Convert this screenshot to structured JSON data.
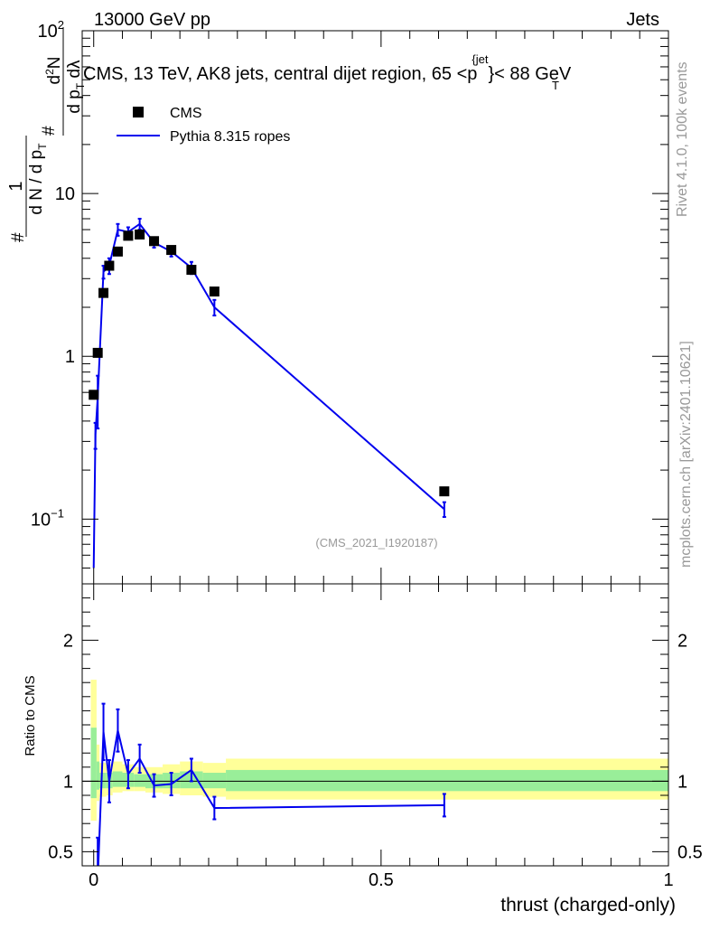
{
  "header": {
    "left": "13000 GeV pp",
    "right": "Jets"
  },
  "side_text": {
    "rivet": "Rivet 4.1.0,  100k events",
    "mcplots": "mcplots.cern.ch [arXiv:2401.10621]"
  },
  "colors": {
    "mc": "#0000ee",
    "data": "#000000",
    "band_inner": "#99ee99",
    "band_outer": "#ffff99",
    "watermark": "#999999"
  },
  "chart_data": [
    {
      "type": "scatter",
      "panel": "main",
      "title": "CMS, 13 TeV, AK8 jets, central dijet region, 65 <p_T^{jet}< 88 GeV",
      "title_main": "CMS, 13 TeV, AK8 jets, central dijet region, 65 <",
      "title_p": "p",
      "title_sub": "T",
      "title_sup": "{jet",
      "title_close": "}",
      "title_end": "< 88 GeV",
      "ylabel": "1/(dN/dp_T) d²N/(dp_T dλ)",
      "ylabel_parts": {
        "frac1_num": "1",
        "frac1_den_a": "d N / d p",
        "frac1_den_sub": "T",
        "frac2_num_a": "d",
        "frac2_num_sup": "2",
        "frac2_num_b": "N",
        "frac2_den_a": "d p",
        "frac2_den_sub": "T",
        "frac2_den_b": " d",
        "lambda": "λ",
        "hash": "#"
      },
      "yscale": "log",
      "ylim": [
        0.04,
        100
      ],
      "xlim": [
        -0.02,
        1.0
      ],
      "y_tick_labels": [
        {
          "value": 0.1,
          "base": "10",
          "exp": "−1"
        },
        {
          "value": 1,
          "base": "1",
          "exp": ""
        },
        {
          "value": 10,
          "base": "10",
          "exp": ""
        },
        {
          "value": 100,
          "base": "10",
          "exp": "2"
        }
      ],
      "legend": [
        {
          "name": "CMS",
          "marker": "square"
        },
        {
          "name": "Pythia 8.315 ropes",
          "marker": "line"
        }
      ],
      "watermark": "(CMS_2021_I1920187)",
      "series": [
        {
          "name": "CMS",
          "x": [
            0.0,
            0.007,
            0.017,
            0.027,
            0.042,
            0.06,
            0.08,
            0.105,
            0.135,
            0.17,
            0.21,
            0.61
          ],
          "y": [
            0.58,
            1.05,
            2.45,
            3.6,
            4.4,
            5.5,
            5.6,
            5.1,
            4.5,
            3.4,
            2.5,
            0.148
          ]
        },
        {
          "name": "Pythia 8.315 ropes",
          "x": [
            0.0,
            0.003,
            0.007,
            0.017,
            0.027,
            0.042,
            0.06,
            0.08,
            0.105,
            0.135,
            0.17,
            0.21,
            0.61
          ],
          "y": [
            0.05,
            0.33,
            0.56,
            3.3,
            3.6,
            6.0,
            5.8,
            6.5,
            5.0,
            4.4,
            3.5,
            2.0,
            0.115
          ],
          "yerr": [
            0.0,
            0.06,
            0.2,
            0.3,
            0.4,
            0.5,
            0.4,
            0.5,
            0.35,
            0.3,
            0.3,
            0.22,
            0.012
          ]
        }
      ]
    },
    {
      "type": "line",
      "panel": "ratio",
      "ylabel": "Ratio to CMS",
      "xlabel": "thrust (charged-only)",
      "ylim": [
        0.4,
        2.4
      ],
      "xlim": [
        -0.02,
        1.0
      ],
      "y_ticks": [
        0.5,
        1,
        2
      ],
      "y_tick_labels": [
        "0.5",
        "1",
        "2"
      ],
      "x_ticks": [
        0,
        0.5,
        1
      ],
      "x_tick_labels": [
        "0",
        "0.5",
        "1"
      ],
      "band_edges": [
        -0.005,
        0.005,
        0.01,
        0.022,
        0.033,
        0.05,
        0.07,
        0.09,
        0.12,
        0.15,
        0.19,
        0.23,
        1.0
      ],
      "band_inner": [
        [
          0.88,
          1.38
        ],
        [
          0.94,
          1.14
        ],
        [
          0.95,
          1.06
        ],
        [
          0.95,
          1.06
        ],
        [
          0.96,
          1.07
        ],
        [
          0.96,
          1.06
        ],
        [
          0.96,
          1.05
        ],
        [
          0.95,
          1.05
        ],
        [
          0.95,
          1.06
        ],
        [
          0.95,
          1.07
        ],
        [
          0.95,
          1.06
        ],
        [
          0.93,
          1.08
        ]
      ],
      "band_outer": [
        [
          0.72,
          1.72
        ],
        [
          0.86,
          1.26
        ],
        [
          0.89,
          1.13
        ],
        [
          0.9,
          1.12
        ],
        [
          0.92,
          1.14
        ],
        [
          0.93,
          1.12
        ],
        [
          0.93,
          1.1
        ],
        [
          0.92,
          1.1
        ],
        [
          0.91,
          1.12
        ],
        [
          0.9,
          1.14
        ],
        [
          0.89,
          1.13
        ],
        [
          0.87,
          1.16
        ]
      ],
      "series": [
        {
          "name": "Pythia 8.315 ropes / CMS",
          "x": [
            0.007,
            0.017,
            0.027,
            0.042,
            0.06,
            0.08,
            0.105,
            0.135,
            0.17,
            0.21,
            0.61
          ],
          "y": [
            0.3,
            1.35,
            1.0,
            1.36,
            1.05,
            1.16,
            0.97,
            0.98,
            1.08,
            0.81,
            0.83
          ],
          "yerr": [
            0.3,
            0.2,
            0.15,
            0.15,
            0.1,
            0.1,
            0.08,
            0.08,
            0.08,
            0.08,
            0.08
          ]
        }
      ]
    }
  ]
}
